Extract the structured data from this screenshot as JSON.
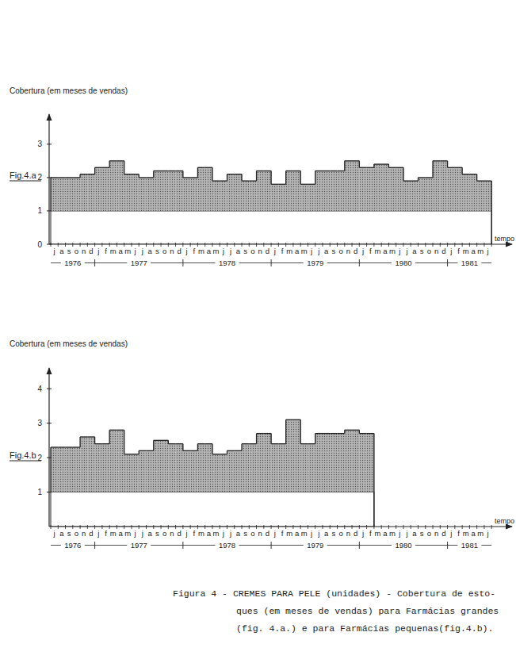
{
  "chart_data": [
    {
      "type": "bar",
      "fig_label": "Fig.4.a",
      "y_label": "Cobertura (em meses de vendas)",
      "x_label": "tempo",
      "categories": [
        "j",
        "a",
        "s",
        "o",
        "n",
        "d",
        "j",
        "f",
        "m",
        "a",
        "m",
        "j",
        "j",
        "a",
        "s",
        "o",
        "n",
        "d",
        "j",
        "f",
        "m",
        "a",
        "m",
        "j",
        "j",
        "a",
        "s",
        "o",
        "n",
        "d",
        "j",
        "f",
        "m",
        "a",
        "m",
        "j",
        "j",
        "a",
        "s",
        "o",
        "n",
        "d",
        "j",
        "f",
        "m",
        "a",
        "m",
        "j",
        "j",
        "a",
        "s",
        "o",
        "n",
        "d",
        "j",
        "f",
        "m",
        "a",
        "m",
        "j"
      ],
      "year_groups": [
        {
          "label": "1976",
          "months": 6
        },
        {
          "label": "1977",
          "months": 12
        },
        {
          "label": "1978",
          "months": 12
        },
        {
          "label": "1979",
          "months": 12
        },
        {
          "label": "1980",
          "months": 12
        },
        {
          "label": "1981",
          "months": 6
        }
      ],
      "values": [
        2.0,
        2.0,
        2.0,
        2.0,
        2.1,
        2.1,
        2.3,
        2.3,
        2.5,
        2.5,
        2.1,
        2.1,
        2.0,
        2.0,
        2.2,
        2.2,
        2.2,
        2.2,
        2.0,
        2.0,
        2.3,
        2.3,
        1.9,
        1.9,
        2.1,
        2.1,
        1.9,
        1.9,
        2.2,
        2.2,
        1.8,
        1.8,
        2.2,
        2.2,
        1.8,
        1.8,
        2.2,
        2.2,
        2.2,
        2.2,
        2.5,
        2.5,
        2.3,
        2.3,
        2.4,
        2.4,
        2.3,
        2.3,
        1.9,
        1.9,
        2.0,
        2.0,
        2.5,
        2.5,
        2.3,
        2.3,
        2.1,
        2.1,
        1.9,
        1.9
      ],
      "baseline": 1,
      "color": "#b4b4b4",
      "ylim": [
        0,
        3.9
      ],
      "yticks": [
        0,
        1,
        2,
        3
      ]
    },
    {
      "type": "bar",
      "fig_label": "Fig.4.b",
      "y_label": "Cobertura (em meses de vendas)",
      "x_label": "tempo",
      "categories": [
        "j",
        "a",
        "s",
        "o",
        "n",
        "d",
        "j",
        "f",
        "m",
        "a",
        "m",
        "j",
        "j",
        "a",
        "s",
        "o",
        "n",
        "d",
        "j",
        "f",
        "m",
        "a",
        "m",
        "j",
        "j",
        "a",
        "s",
        "o",
        "n",
        "d",
        "j",
        "f",
        "m",
        "a",
        "m",
        "j",
        "j",
        "a",
        "s",
        "o",
        "n",
        "d",
        "j",
        "f",
        "m",
        "a",
        "m",
        "j",
        "j",
        "a",
        "s",
        "o",
        "n",
        "d",
        "j",
        "f",
        "m",
        "a",
        "m",
        "j"
      ],
      "year_groups": [
        {
          "label": "1976",
          "months": 6
        },
        {
          "label": "1977",
          "months": 12
        },
        {
          "label": "1978",
          "months": 12
        },
        {
          "label": "1979",
          "months": 12
        },
        {
          "label": "1980",
          "months": 12
        },
        {
          "label": "1981",
          "months": 6
        }
      ],
      "values": [
        2.3,
        2.3,
        2.3,
        2.3,
        2.6,
        2.6,
        2.4,
        2.4,
        2.8,
        2.8,
        2.1,
        2.1,
        2.2,
        2.2,
        2.5,
        2.5,
        2.4,
        2.4,
        2.2,
        2.2,
        2.4,
        2.4,
        2.1,
        2.1,
        2.2,
        2.2,
        2.4,
        2.4,
        2.7,
        2.7,
        2.4,
        2.4,
        3.1,
        3.1,
        2.4,
        2.4,
        2.7,
        2.7,
        2.7,
        2.7,
        2.8,
        2.8,
        2.7,
        2.7,
        null,
        null,
        null,
        null,
        null,
        null,
        null,
        null,
        null,
        null,
        null,
        null,
        null,
        null,
        null,
        null
      ],
      "baseline": 1,
      "color": "#b4b4b4",
      "ylim": [
        0,
        4.6
      ],
      "yticks": [
        1,
        2,
        3,
        4
      ]
    }
  ],
  "caption": [
    "Figura 4 - CREMES PARA PELE (unidades) - Cobertura de esto-",
    "ques (em meses de vendas) para Farmácias grandes",
    "(fig. 4.a.) e para Farmácias pequenas(fig.4.b)."
  ]
}
